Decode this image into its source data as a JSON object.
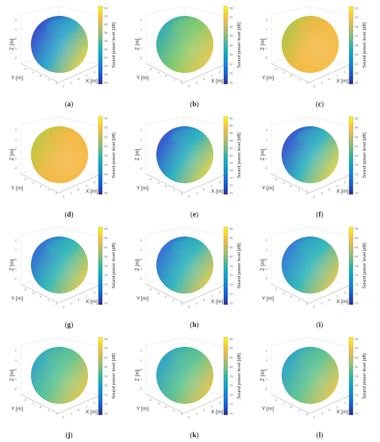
{
  "chart_data": [
    {
      "type": "heatmap",
      "panel": "(a)",
      "zlabel": "Z [m]",
      "xlabel": "X [m]",
      "ylabel": "Y [m]",
      "colorbar_label": "Sound power level [dB]",
      "colorbar_ticks": [
        "64",
        "62",
        "60",
        "58",
        "56",
        "54",
        "52",
        "50",
        "48",
        "46"
      ],
      "colorbar_range": [
        46,
        64
      ],
      "x_ticks": [
        "-2",
        "-1",
        "0",
        "1",
        "2"
      ],
      "y_ticks": [
        "-2",
        "-1",
        "0",
        "1",
        "2"
      ],
      "z_ticks": [
        "2",
        "1",
        "0",
        "-1",
        "-2"
      ],
      "colors": {
        "left": "#3b3fcf",
        "mid": "#2aa6c8",
        "right": "#f2d427"
      }
    },
    {
      "type": "heatmap",
      "panel": "(b)",
      "zlabel": "Z [m]",
      "xlabel": "X [m]",
      "ylabel": "Y [m]",
      "colorbar_label": "Sound power level [dB]",
      "colorbar_ticks": [
        "58",
        "57",
        "56",
        "55",
        "54",
        "53",
        "52",
        "51",
        "50"
      ],
      "colorbar_range": [
        50,
        58
      ],
      "x_ticks": [
        "-2",
        "-1",
        "0",
        "1",
        "2"
      ],
      "y_ticks": [
        "-2",
        "-1",
        "0",
        "1",
        "2"
      ],
      "z_ticks": [
        "2",
        "1",
        "0",
        "-1",
        "-2"
      ],
      "colors": {
        "left": "#2ba8c2",
        "mid": "#7dc86a",
        "right": "#f4c23a"
      }
    },
    {
      "type": "heatmap",
      "panel": "(c)",
      "zlabel": "Z [m]",
      "xlabel": "X [m]",
      "ylabel": "Y [m]",
      "colorbar_label": "Sound power level [dB]",
      "colorbar_ticks": [
        "50",
        "49",
        "48",
        "47",
        "46",
        "45",
        "44",
        "43",
        "42"
      ],
      "colorbar_range": [
        42,
        50
      ],
      "x_ticks": [
        "-2",
        "-1",
        "0",
        "1",
        "2"
      ],
      "y_ticks": [
        "-2",
        "-1",
        "0",
        "1",
        "2"
      ],
      "z_ticks": [
        "2",
        "1",
        "0",
        "-1",
        "-2"
      ],
      "colors": {
        "left": "#a9c94c",
        "mid": "#f2b73d",
        "right": "#f5b83a"
      }
    },
    {
      "type": "heatmap",
      "panel": "(d)",
      "zlabel": "Z [m]",
      "xlabel": "X [m]",
      "ylabel": "Y [m]",
      "colorbar_label": "Sound power level [dB]",
      "colorbar_ticks": [
        "54",
        "53",
        "52",
        "51",
        "50",
        "49",
        "48",
        "47",
        "46"
      ],
      "colorbar_range": [
        46,
        54
      ],
      "x_ticks": [
        "-2",
        "-1",
        "0",
        "1",
        "2"
      ],
      "y_ticks": [
        "-2",
        "-1",
        "0",
        "1",
        "2"
      ],
      "z_ticks": [
        "2",
        "1",
        "0",
        "-1",
        "-2"
      ],
      "colors": {
        "left": "#b5cc45",
        "mid": "#f2b63e",
        "right": "#f7b538"
      }
    },
    {
      "type": "heatmap",
      "panel": "(e)",
      "zlabel": "Z [m]",
      "xlabel": "X [m]",
      "ylabel": "Y [m]",
      "colorbar_label": "Sound power level [dB]",
      "colorbar_ticks": [
        "90",
        "88",
        "86",
        "84",
        "82",
        "80",
        "78",
        "76",
        "74",
        "72",
        "70"
      ],
      "colorbar_range": [
        70,
        90
      ],
      "x_ticks": [
        "-2",
        "-1",
        "0",
        "1",
        "2"
      ],
      "y_ticks": [
        "-2",
        "-1",
        "0",
        "1",
        "2"
      ],
      "z_ticks": [
        "2",
        "1",
        "0",
        "-1",
        "-2"
      ],
      "colors": {
        "left": "#4047d6",
        "mid": "#24aebd",
        "right": "#f3d12e"
      }
    },
    {
      "type": "heatmap",
      "panel": "(f)",
      "zlabel": "Z [m]",
      "xlabel": "X [m]",
      "ylabel": "Y [m]",
      "colorbar_label": "Sound power level [dB]",
      "colorbar_ticks": [
        "88",
        "86",
        "84",
        "82",
        "80",
        "78",
        "76",
        "74",
        "72"
      ],
      "colorbar_range": [
        72,
        88
      ],
      "x_ticks": [
        "-2",
        "-1",
        "0",
        "1",
        "2"
      ],
      "y_ticks": [
        "-2",
        "-1",
        "0",
        "1",
        "2"
      ],
      "z_ticks": [
        "2",
        "1",
        "0",
        "-1",
        "-2"
      ],
      "colors": {
        "left": "#3d44d3",
        "mid": "#2bb0c0",
        "right": "#f4d22c"
      }
    },
    {
      "type": "heatmap",
      "panel": "(g)",
      "zlabel": "Z [m]",
      "xlabel": "X [m]",
      "ylabel": "Y [m]",
      "colorbar_label": "Sound power level [dB]",
      "colorbar_ticks": [
        "86",
        "84",
        "82",
        "80",
        "78",
        "76",
        "74",
        "72",
        "70"
      ],
      "colorbar_range": [
        70,
        86
      ],
      "x_ticks": [
        "-2",
        "-1",
        "0",
        "1",
        "2"
      ],
      "y_ticks": [
        "-2",
        "-1",
        "0",
        "1",
        "2"
      ],
      "z_ticks": [
        "2",
        "1",
        "0",
        "-1",
        "-2"
      ],
      "colors": {
        "left": "#3a62db",
        "mid": "#2bb5b5",
        "right": "#f2c932"
      }
    },
    {
      "type": "heatmap",
      "panel": "(h)",
      "zlabel": "Z [m]",
      "xlabel": "X [m]",
      "ylabel": "Y [m]",
      "colorbar_label": "Sound power level [dB]",
      "colorbar_ticks": [
        "86",
        "84",
        "82",
        "80",
        "78",
        "76",
        "74",
        "72",
        "70"
      ],
      "colorbar_range": [
        70,
        86
      ],
      "x_ticks": [
        "-2",
        "-1",
        "0",
        "1",
        "2"
      ],
      "y_ticks": [
        "-2",
        "-1",
        "0",
        "1",
        "2"
      ],
      "z_ticks": [
        "2",
        "1",
        "0",
        "-1",
        "-2"
      ],
      "colors": {
        "left": "#3b68dc",
        "mid": "#28b3bb",
        "right": "#f3c734"
      }
    },
    {
      "type": "heatmap",
      "panel": "(i)",
      "zlabel": "Z [m]",
      "xlabel": "X [m]",
      "ylabel": "Y [m]",
      "colorbar_label": "Sound power level [dB]",
      "colorbar_ticks": [
        "86",
        "84",
        "82",
        "80",
        "78",
        "76",
        "74",
        "72",
        "70"
      ],
      "colorbar_range": [
        70,
        86
      ],
      "x_ticks": [
        "-2",
        "-1",
        "0",
        "1",
        "2"
      ],
      "y_ticks": [
        "-2",
        "-1",
        "0",
        "1",
        "2"
      ],
      "z_ticks": [
        "2",
        "1",
        "0",
        "-1",
        "-2"
      ],
      "colors": {
        "left": "#3a72de",
        "mid": "#2ab5b8",
        "right": "#f2c536"
      }
    },
    {
      "type": "heatmap",
      "panel": "(j)",
      "zlabel": "Z [m]",
      "xlabel": "X [m]",
      "ylabel": "Y [m]",
      "colorbar_label": "Sound power level [dB]",
      "colorbar_ticks": [
        "86",
        "84",
        "82",
        "80",
        "78",
        "76",
        "74",
        "72",
        "70"
      ],
      "colorbar_range": [
        70,
        86
      ],
      "x_ticks": [
        "-2",
        "-1",
        "0",
        "1",
        "2"
      ],
      "y_ticks": [
        "-2",
        "-1",
        "0",
        "1",
        "2"
      ],
      "z_ticks": [
        "2",
        "1",
        "0",
        "-1",
        "-2"
      ],
      "colors": {
        "left": "#2fa4cf",
        "mid": "#5cc38c",
        "right": "#f1c33a"
      }
    },
    {
      "type": "heatmap",
      "panel": "(k)",
      "zlabel": "Z [m]",
      "xlabel": "X [m]",
      "ylabel": "Y [m]",
      "colorbar_label": "Sound power level [dB]",
      "colorbar_ticks": [
        "86",
        "84",
        "82",
        "80",
        "78",
        "76",
        "74",
        "72",
        "70"
      ],
      "colorbar_range": [
        70,
        86
      ],
      "x_ticks": [
        "-2",
        "-1",
        "0",
        "1",
        "2"
      ],
      "y_ticks": [
        "-2",
        "-1",
        "0",
        "1",
        "2"
      ],
      "z_ticks": [
        "2",
        "1",
        "0",
        "-1",
        "-2"
      ],
      "colors": {
        "left": "#2c9fd1",
        "mid": "#56c18f",
        "right": "#f2c03a"
      }
    },
    {
      "type": "heatmap",
      "panel": "(l)",
      "zlabel": "Z [m]",
      "xlabel": "X [m]",
      "ylabel": "Y [m]",
      "colorbar_label": "Sound power level [dB]",
      "colorbar_ticks": [
        "86",
        "84",
        "82",
        "80",
        "78",
        "76",
        "74",
        "72",
        "70"
      ],
      "colorbar_range": [
        70,
        86
      ],
      "x_ticks": [
        "-2",
        "-1",
        "0",
        "1",
        "2"
      ],
      "y_ticks": [
        "-2",
        "-1",
        "0",
        "1",
        "2"
      ],
      "z_ticks": [
        "2",
        "1",
        "0",
        "-1",
        "-2"
      ],
      "colors": {
        "left": "#2d9ed2",
        "mid": "#59c28e",
        "right": "#f2c13a"
      }
    }
  ]
}
